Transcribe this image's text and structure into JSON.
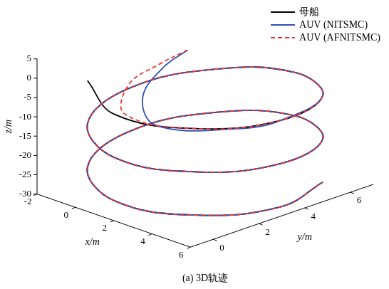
{
  "chart_data": {
    "type": "line",
    "title": "(a) 3D轨迹",
    "x_label": "x/m",
    "y_label": "y/m",
    "z_label": "z/m",
    "xlim": [
      -2,
      6
    ],
    "ylim": [
      -1,
      7
    ],
    "zlim": [
      -30,
      5
    ],
    "xticks": [
      -2,
      0,
      2,
      4,
      6
    ],
    "yticks": [
      0,
      2,
      4,
      6
    ],
    "zticks": [
      -30,
      -25,
      -20,
      -15,
      -10,
      -5,
      0,
      5
    ],
    "legend": "upper right",
    "series": [
      {
        "name": "母船",
        "color": "#000000",
        "line_style": "solid",
        "x": [
          -0.8,
          2,
          4.8,
          6,
          4.8,
          2,
          -0.8,
          -2,
          -0.8,
          2,
          4.8,
          6,
          4.8,
          2,
          -0.8,
          -2,
          -0.8,
          2,
          4.8,
          6,
          4.8
        ],
        "y": [
          0.2,
          -1,
          0.2,
          3,
          5.8,
          7,
          5.8,
          3,
          0.2,
          -1,
          0.2,
          3,
          5.8,
          7,
          5.8,
          3,
          0.2,
          -1,
          0.2,
          3,
          5.8
        ],
        "z": [
          -1,
          -2.4,
          -3.8,
          -5.2,
          -6.6,
          -8,
          -9.4,
          -10.8,
          -12.2,
          -13.6,
          -15,
          -16.4,
          -17.8,
          -19.2,
          -20.6,
          -22,
          -23.4,
          -24.8,
          -26.2,
          -27.6,
          -29
        ]
      },
      {
        "name": "AUV (NITSMC)",
        "color": "#2f4fb5",
        "line_style": "solid",
        "x": [
          0.5,
          0.6,
          1.6,
          3.6,
          5.6,
          6,
          4.8,
          2,
          -0.8,
          -2,
          -0.8,
          2,
          4.8,
          6,
          4.8,
          2,
          -0.8,
          -2,
          -0.8,
          2,
          4.8,
          6,
          4.8
        ],
        "y": [
          3.5,
          2.3,
          0.6,
          -0.5,
          1.4,
          3,
          5.8,
          7,
          5.8,
          3,
          0.2,
          -1,
          0.2,
          3,
          5.8,
          7,
          5.8,
          3,
          0.2,
          -1,
          0.2,
          3,
          5.8
        ],
        "z": [
          2.5,
          0.3,
          -2.2,
          -3.6,
          -4.9,
          -5.2,
          -6.6,
          -8,
          -9.4,
          -10.8,
          -12.2,
          -13.6,
          -15,
          -16.4,
          -17.8,
          -19.2,
          -20.6,
          -22,
          -23.4,
          -24.8,
          -26.2,
          -27.6,
          -29
        ]
      },
      {
        "name": "AUV (AFNITSMC)",
        "color": "#e8373a",
        "line_style": "dashed",
        "x": [
          0.5,
          0.3,
          0.4,
          2.2,
          4.8,
          6,
          4.8,
          2,
          -0.8,
          -2,
          -0.8,
          2,
          4.8,
          6,
          4.8,
          2,
          -0.8,
          -2,
          -0.8,
          2,
          4.8,
          6,
          4.8
        ],
        "y": [
          3.5,
          2.4,
          1.0,
          -0.7,
          0.2,
          3,
          5.8,
          7,
          5.8,
          3,
          0.2,
          -1,
          0.2,
          3,
          5.8,
          7,
          5.8,
          3,
          0.2,
          -1,
          0.2,
          3,
          5.8
        ],
        "z": [
          2.5,
          0.6,
          -1.6,
          -2.6,
          -3.8,
          -5.2,
          -6.6,
          -8,
          -9.4,
          -10.8,
          -12.2,
          -13.6,
          -15,
          -16.4,
          -17.8,
          -19.2,
          -20.6,
          -22,
          -23.4,
          -24.8,
          -26.2,
          -27.6,
          -29
        ]
      }
    ]
  }
}
